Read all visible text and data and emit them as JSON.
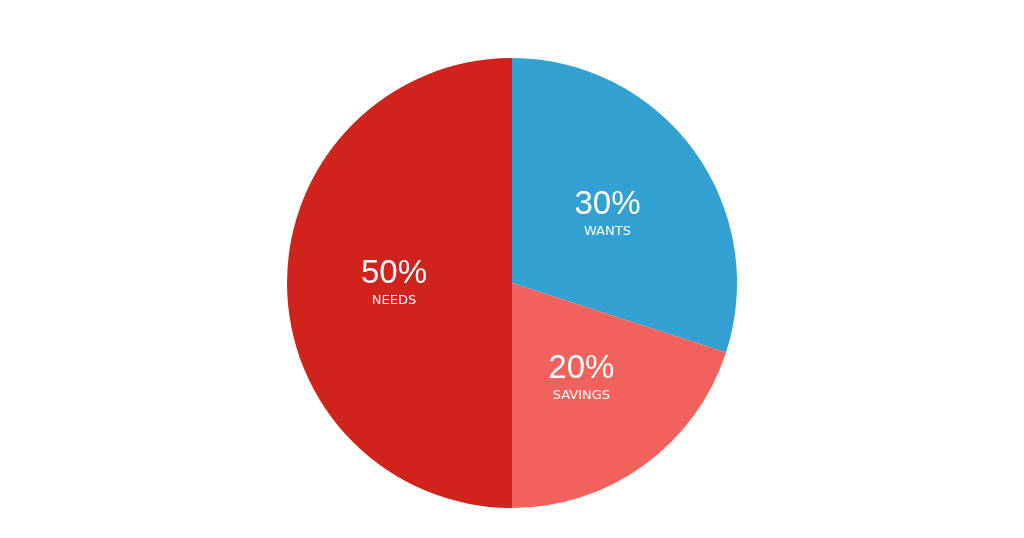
{
  "chart_data": {
    "type": "pie",
    "categories": [
      "WANTS",
      "SAVINGS",
      "NEEDS"
    ],
    "values": [
      30,
      20,
      50
    ],
    "colors": [
      "#33a0d2",
      "#f2625c",
      "#cf231b"
    ],
    "value_labels": [
      "30%",
      "20%",
      "50%"
    ]
  }
}
